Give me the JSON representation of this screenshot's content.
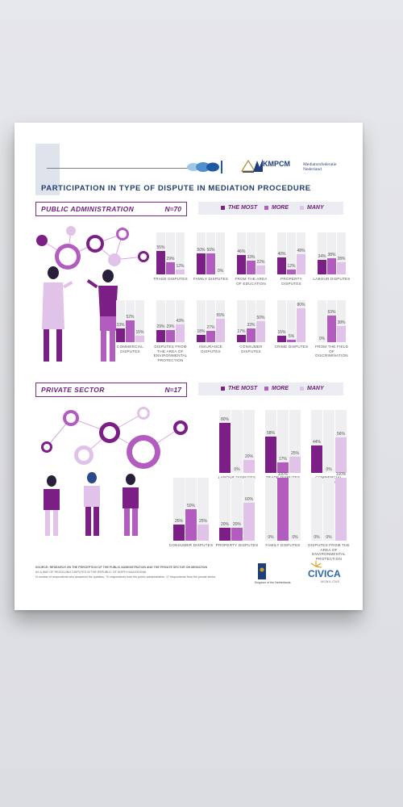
{
  "poster": {
    "title": "PARTICIPATION IN TYPE OF DISPUTE IN MEDIATION PROCEDURE",
    "logos": {
      "kmpcm": "KMPCM",
      "meds": "Mediatorsfederatie Nederland"
    }
  },
  "legend": {
    "most": "THE MOST",
    "more": "MORE",
    "many": "MANY"
  },
  "colors": {
    "most": "#7b1f86",
    "more": "#b25cc0",
    "many": "#e1c3ea",
    "track": "#efeff2",
    "title": "#1f3d6e"
  },
  "sections": [
    {
      "name": "PUBLIC ADMINISTRATION",
      "n": "N=70",
      "charts": [
        {
          "label": "TRADE DISPUTES",
          "values": [
            55,
            29,
            12
          ]
        },
        {
          "label": "FAMILY DISPUTES",
          "values": [
            50,
            50,
            0
          ]
        },
        {
          "label": "FROM THE AREA OF EDUCATION",
          "values": [
            46,
            33,
            22
          ]
        },
        {
          "label": "PROPERTY DISPUTES",
          "values": [
            40,
            12,
            48
          ]
        },
        {
          "label": "LABOUR DISPUTES",
          "values": [
            34,
            38,
            28
          ]
        },
        {
          "label": "COMMERCIAL DISPUTES",
          "values": [
            33,
            52,
            15
          ]
        },
        {
          "label": "DISPUTES FROM THE AREA OF ENVIRONMENTAL PROTECTION",
          "values": [
            29,
            29,
            43
          ]
        },
        {
          "label": "INSURANCE DISPUTES",
          "values": [
            18,
            27,
            55
          ]
        },
        {
          "label": "CONSUMER DISPUTES",
          "values": [
            17,
            33,
            50
          ]
        },
        {
          "label": "CRIME DISPUTES",
          "values": [
            15,
            5,
            80
          ]
        },
        {
          "label": "FROM THE FIELD OF DISCRIMINATION",
          "values": [
            0,
            63,
            38
          ]
        }
      ]
    },
    {
      "name": "PRIVATE SECTOR",
      "n": "N=17",
      "charts": [
        {
          "label": "LABOUR DISPUTES",
          "values": [
            80,
            0,
            20
          ]
        },
        {
          "label": "TRADE DISPUTES",
          "values": [
            58,
            17,
            25
          ]
        },
        {
          "label": "COMMERCIAL DISPUTES",
          "values": [
            44,
            0,
            56
          ]
        },
        {
          "label": "CONSUMER DISPUTES",
          "values": [
            25,
            50,
            25
          ]
        },
        {
          "label": "PROPERTY DISPUTES",
          "values": [
            20,
            20,
            60
          ]
        },
        {
          "label": "FAMILY DISPUTES",
          "values": [
            0,
            100,
            0
          ]
        },
        {
          "label": "DISPUTES FROM THE AREA OF ENVIRONMENTAL PROTECTION",
          "values": [
            0,
            0,
            100
          ]
        }
      ]
    }
  ],
  "footer": {
    "source": "SOURCE: RESEARCH ON THE PERCEPTION OF THE PUBLIC ADMINISTRATION AND THE PRIVATE SECTOR ON MEDIATION",
    "line2": "AS A WAY OF RESOLVING DISPUTES IN THE REPUBLIC OF NORTH MACEDONIA",
    "line3": "N number of respondents who answered the question, 70 respondents from the public administration, 17 respondents from the private sector",
    "nl": "Kingdom of the Netherlands",
    "civica": "CIVICA",
    "civica_sub": "MOBILITAS"
  }
}
